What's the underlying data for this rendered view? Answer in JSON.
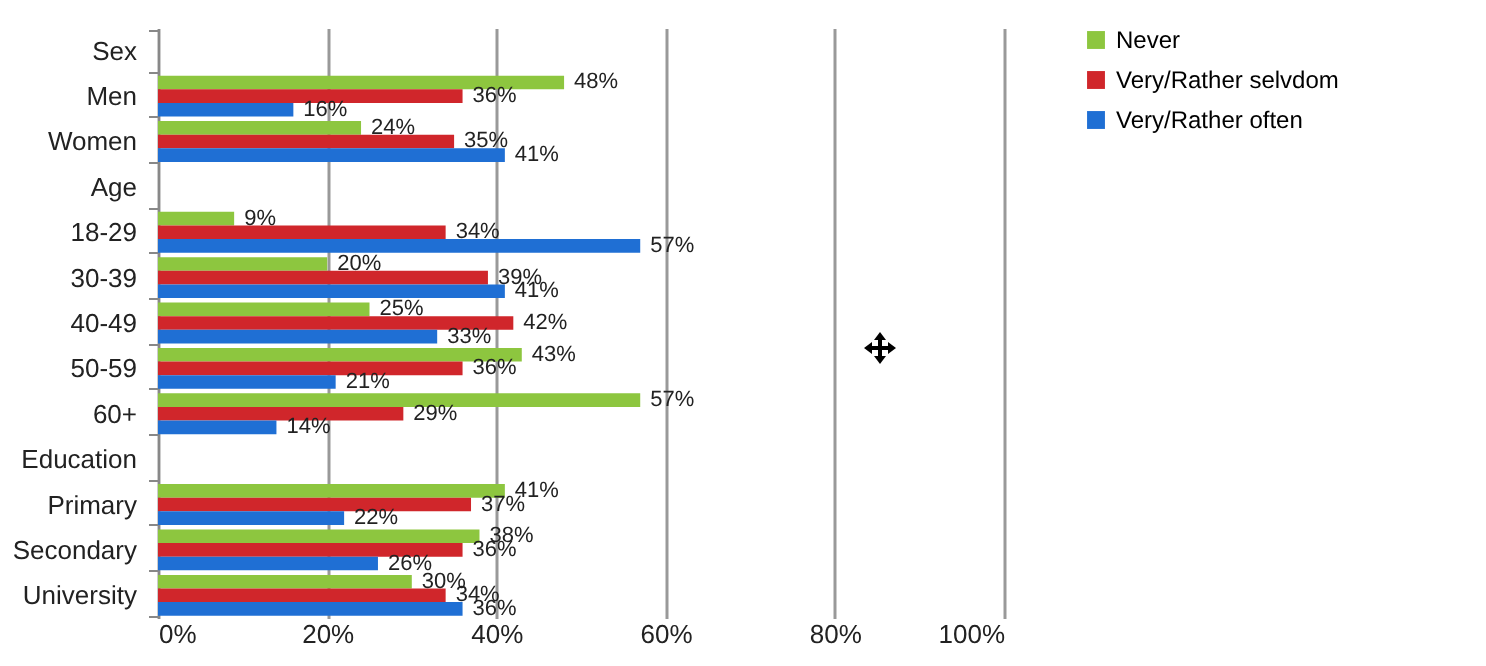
{
  "chart_data": {
    "type": "bar",
    "orientation": "horizontal",
    "categories": [
      "Sex",
      "Men",
      "Women",
      "Age",
      "18-29",
      "30-39",
      "40-49",
      "50-59",
      "60+",
      "Education",
      "Primary",
      "Secondary",
      "University"
    ],
    "series": [
      {
        "name": "Never",
        "color": "#8dc63f",
        "values": [
          null,
          48,
          24,
          null,
          9,
          20,
          25,
          43,
          57,
          null,
          41,
          38,
          30
        ],
        "value_labels": [
          null,
          "48%",
          "24%",
          null,
          "9%",
          "20%",
          "25%",
          "43%",
          "57%",
          null,
          "41%",
          "38%",
          "30%"
        ]
      },
      {
        "name": "Very/Rather selvdom",
        "color": "#d0262b",
        "values": [
          null,
          36,
          35,
          null,
          34,
          39,
          42,
          36,
          29,
          null,
          37,
          36,
          34
        ],
        "value_labels": [
          null,
          "36%",
          "35%",
          null,
          "34%",
          "39%",
          "42%",
          "36%",
          "29%",
          null,
          "37%",
          "36%",
          "34%"
        ]
      },
      {
        "name": "Very/Rather often",
        "color": "#1f6fd4",
        "values": [
          null,
          16,
          41,
          null,
          57,
          41,
          33,
          21,
          14,
          null,
          22,
          26,
          36
        ],
        "value_labels": [
          null,
          "16%",
          "41%",
          null,
          "57%",
          "41%",
          "33%",
          "21%",
          "14%",
          null,
          "22%",
          "26%",
          "36%"
        ]
      }
    ],
    "xlim": [
      0,
      100
    ],
    "xticks": [
      {
        "value": 0,
        "label": "0%"
      },
      {
        "value": 20,
        "label": "20%"
      },
      {
        "value": 40,
        "label": "40%"
      },
      {
        "value": 60,
        "label": "60%"
      },
      {
        "value": 80,
        "label": "80%"
      },
      {
        "value": 100,
        "label": "100%"
      }
    ],
    "grid": "x",
    "legend": "right"
  }
}
